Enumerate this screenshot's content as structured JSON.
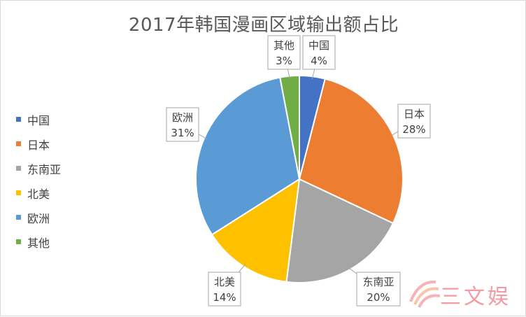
{
  "chart_data": {
    "type": "pie",
    "title": "2017年韩国漫画区域输出额占比",
    "categories": [
      "中国",
      "日本",
      "东南亚",
      "北美",
      "欧洲",
      "其他"
    ],
    "values": [
      4,
      28,
      20,
      14,
      31,
      3
    ],
    "labels": [
      "4%",
      "28%",
      "20%",
      "14%",
      "31%",
      "3%"
    ],
    "colors": [
      "#4472c4",
      "#ed7d31",
      "#a5a5a5",
      "#ffc000",
      "#5b9bd5",
      "#70ad47"
    ],
    "legend_position": "left",
    "data_labels": "category and percent in callout boxes"
  },
  "watermark": {
    "text": "三文娱",
    "color": "#f08a93"
  }
}
